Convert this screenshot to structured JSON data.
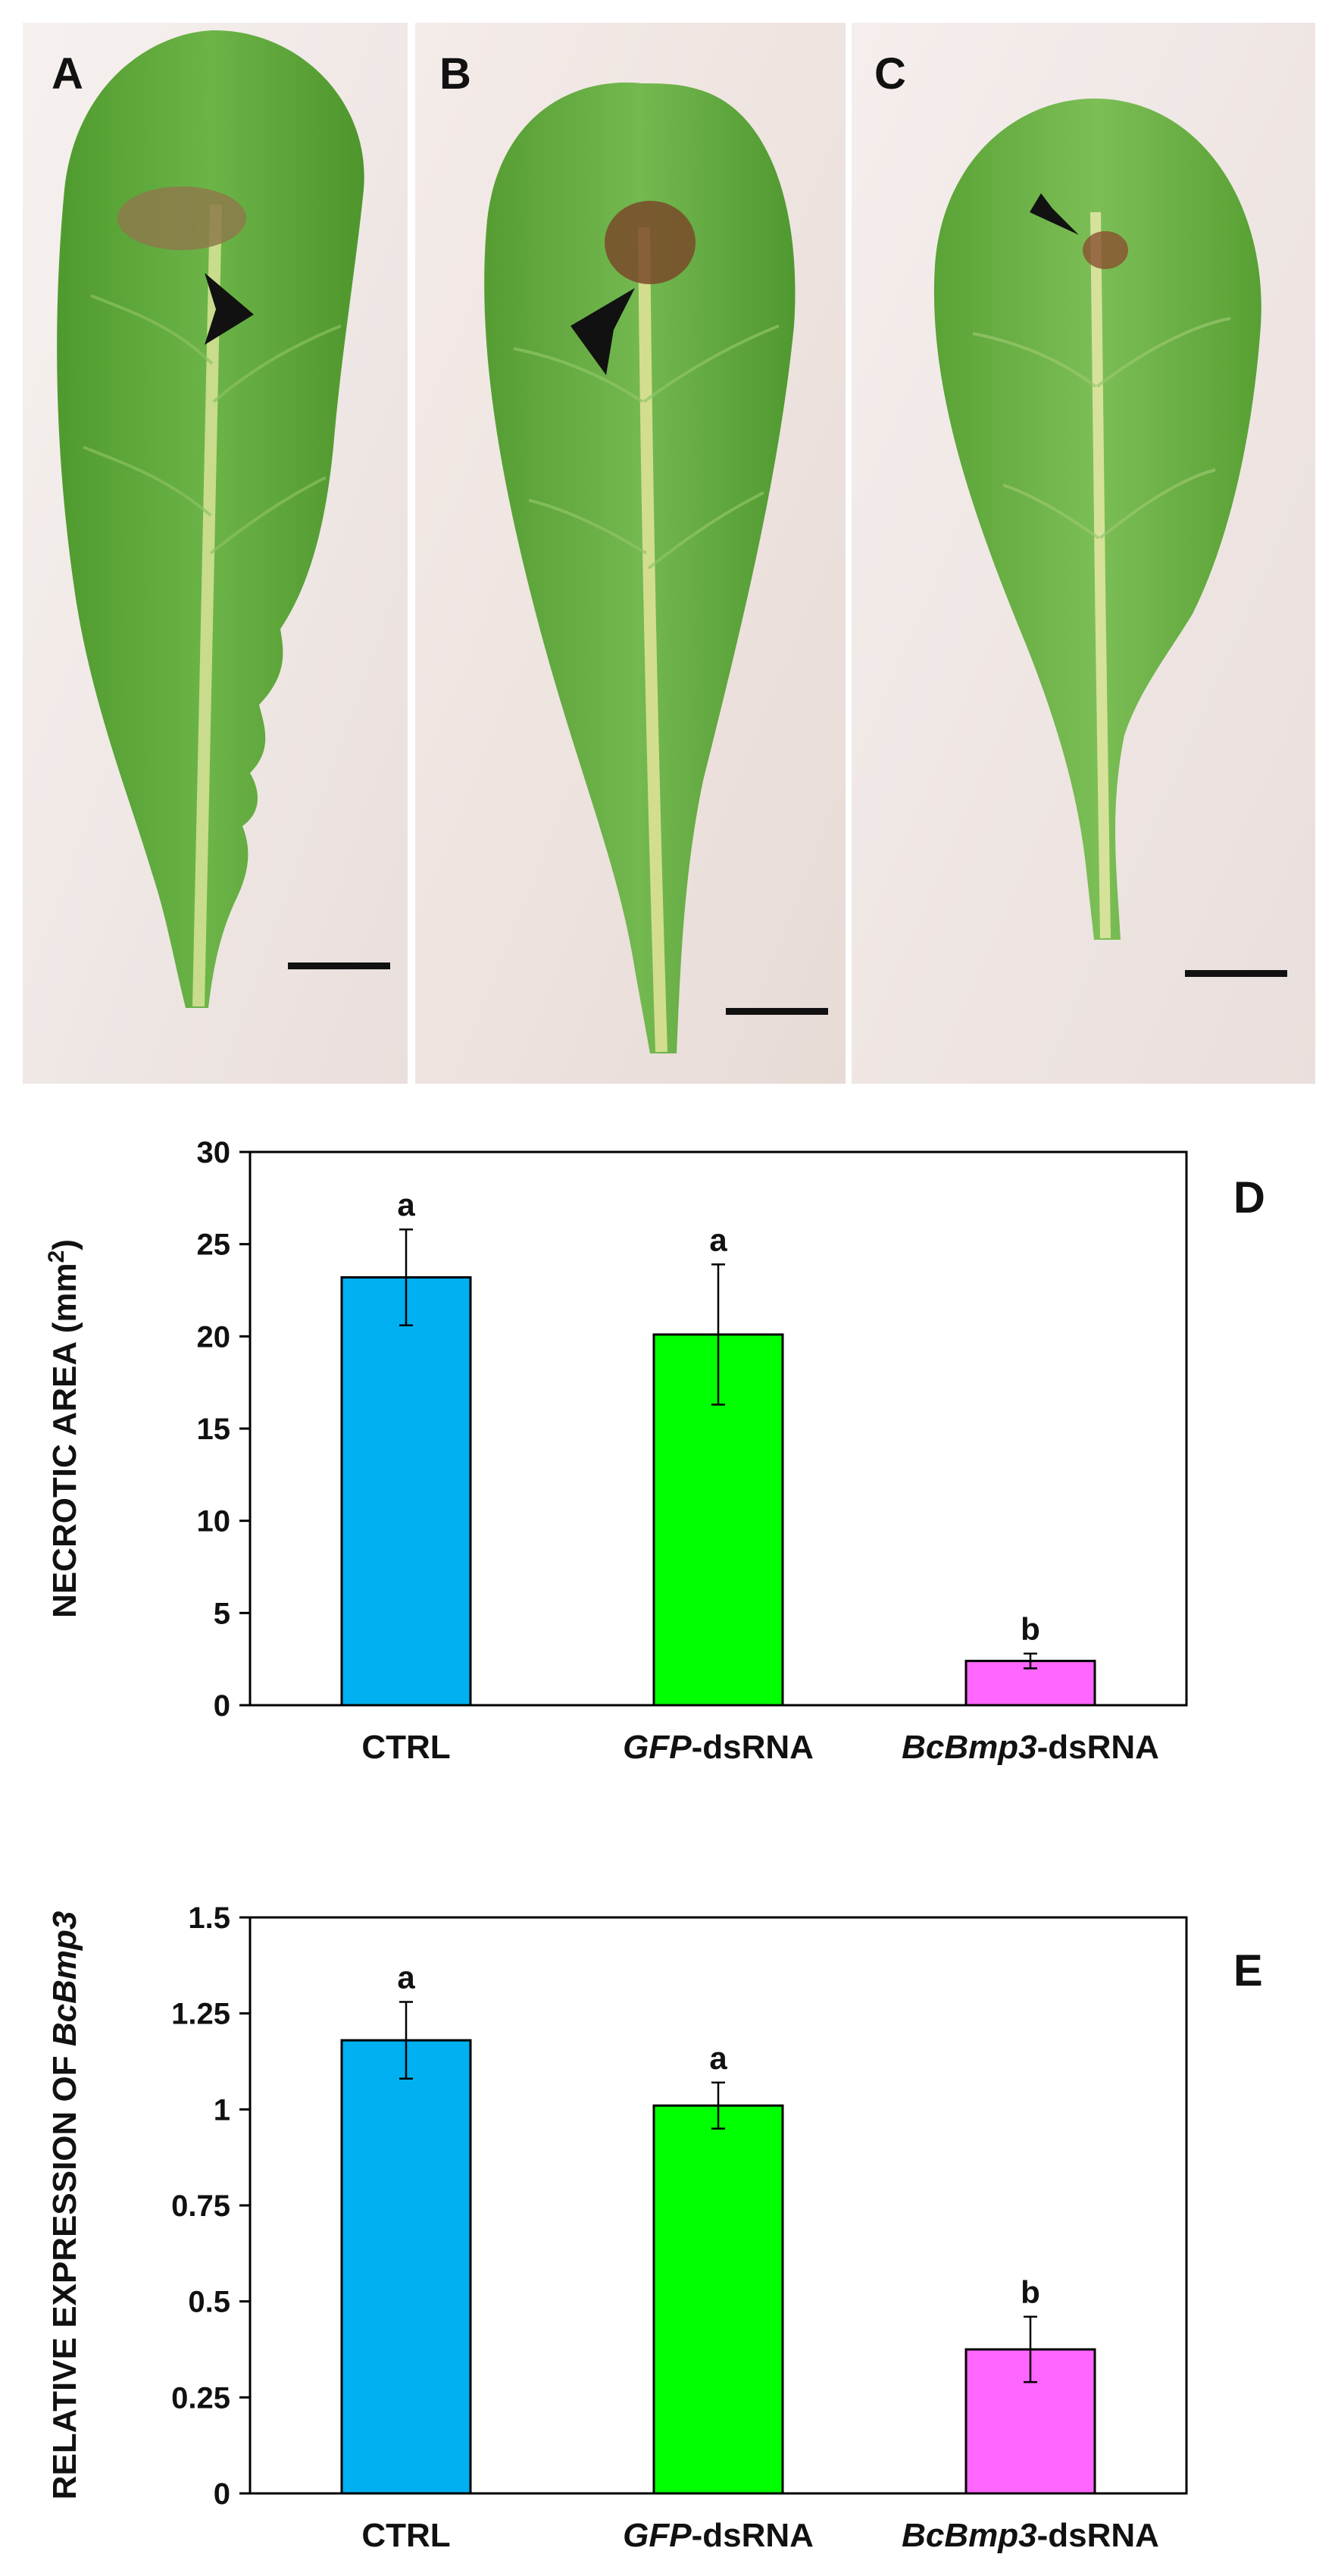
{
  "photo_panels": [
    {
      "letter": "A",
      "background": "#f2ecea",
      "leaf_color": "#5fa83a"
    },
    {
      "letter": "B",
      "background": "#efe5e1",
      "leaf_color": "#64ad40"
    },
    {
      "letter": "C",
      "background": "#f0e7e6",
      "leaf_color": "#6db346"
    }
  ],
  "chart_data": [
    {
      "type": "bar",
      "panel_label": "D",
      "ylabel": "NECROTIC AREA (mm",
      "ylabel_sup": "2",
      "ylabel_tail": ")",
      "ylim": [
        0,
        30
      ],
      "yticks": [
        "0",
        "5",
        "10",
        "15",
        "20",
        "25",
        "30"
      ],
      "grid": false,
      "categories": [
        {
          "italic": "",
          "plain": "CTRL"
        },
        {
          "italic": "GFP",
          "plain": "-dsRNA"
        },
        {
          "italic": "BcBmp3",
          "plain": "-dsRNA"
        }
      ],
      "values": [
        23.2,
        20.1,
        2.4
      ],
      "errors": [
        2.6,
        3.8,
        0.4
      ],
      "letters": [
        "a",
        "a",
        "b"
      ],
      "colors": [
        "#00b0f0",
        "#00ff00",
        "#ff66ff"
      ]
    },
    {
      "type": "bar",
      "panel_label": "E",
      "ylabel": "RELATIVE EXPRESSION OF ",
      "ylabel_italic": "BcBmp3",
      "ylim": [
        0,
        1.5
      ],
      "yticks": [
        "0",
        "0.25",
        "0.5",
        "0.75",
        "1",
        "1.25",
        "1.5"
      ],
      "grid": false,
      "categories": [
        {
          "italic": "",
          "plain": "CTRL"
        },
        {
          "italic": "GFP",
          "plain": "-dsRNA"
        },
        {
          "italic": "BcBmp3",
          "plain": "-dsRNA"
        }
      ],
      "values": [
        1.18,
        1.01,
        0.375
      ],
      "errors": [
        0.1,
        0.06,
        0.085
      ],
      "letters": [
        "a",
        "a",
        "b"
      ],
      "colors": [
        "#00b0f0",
        "#00ff00",
        "#ff66ff"
      ]
    }
  ]
}
